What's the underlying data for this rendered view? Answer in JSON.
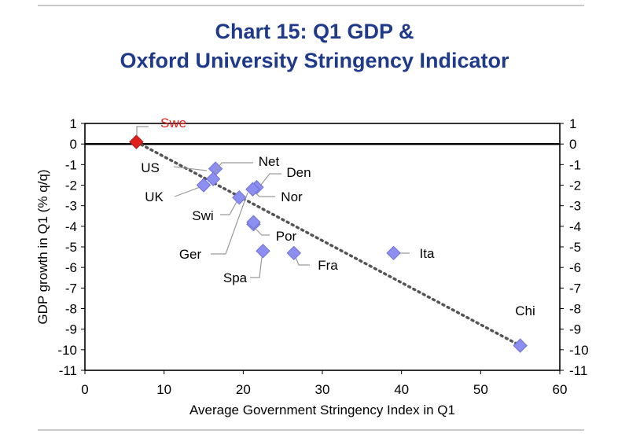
{
  "chart_data": {
    "type": "scatter",
    "title_lines": [
      "Chart 15: Q1 GDP &",
      "Oxford University Stringency Indicator"
    ],
    "xlabel": "Average Government Stringency Index in Q1",
    "ylabel": "GDP growth in Q1 (% q/q)",
    "xlim": [
      0,
      60
    ],
    "ylim": [
      -11,
      1
    ],
    "xticks": [
      0,
      10,
      20,
      30,
      40,
      50,
      60
    ],
    "yticks": [
      1,
      0,
      -1,
      -2,
      -3,
      -4,
      -5,
      -6,
      -7,
      -8,
      -9,
      -10,
      -11
    ],
    "grid": false,
    "trendline": {
      "style": "dotted",
      "from": [
        6.5,
        0.1
      ],
      "to": [
        55,
        -9.8
      ]
    },
    "points": [
      {
        "label": "Swe",
        "x": 6.5,
        "y": 0.1,
        "highlight": true
      },
      {
        "label": "US",
        "x": 16.5,
        "y": -1.2
      },
      {
        "label": "Net",
        "x": 16.2,
        "y": -1.7
      },
      {
        "label": "UK",
        "x": 15.0,
        "y": -2.0
      },
      {
        "label": "Den",
        "x": 21.7,
        "y": -2.1
      },
      {
        "label": "Nor",
        "x": 21.2,
        "y": -2.2
      },
      {
        "label": "Swi",
        "x": 19.5,
        "y": -2.6
      },
      {
        "label": "Ger",
        "x": 21.3,
        "y": -3.9
      },
      {
        "label": "Por",
        "x": 21.3,
        "y": -3.8
      },
      {
        "label": "Spa",
        "x": 22.5,
        "y": -5.2
      },
      {
        "label": "Fra",
        "x": 26.4,
        "y": -5.3
      },
      {
        "label": "Ita",
        "x": 39.0,
        "y": -5.3
      },
      {
        "label": "Chi",
        "x": 55.0,
        "y": -9.8
      }
    ],
    "colors": {
      "point": "#8c8ef0",
      "point_stroke": "#6f72d8",
      "highlight": "#e0201b",
      "title": "#1f3a8a",
      "trend": "#555555"
    }
  }
}
